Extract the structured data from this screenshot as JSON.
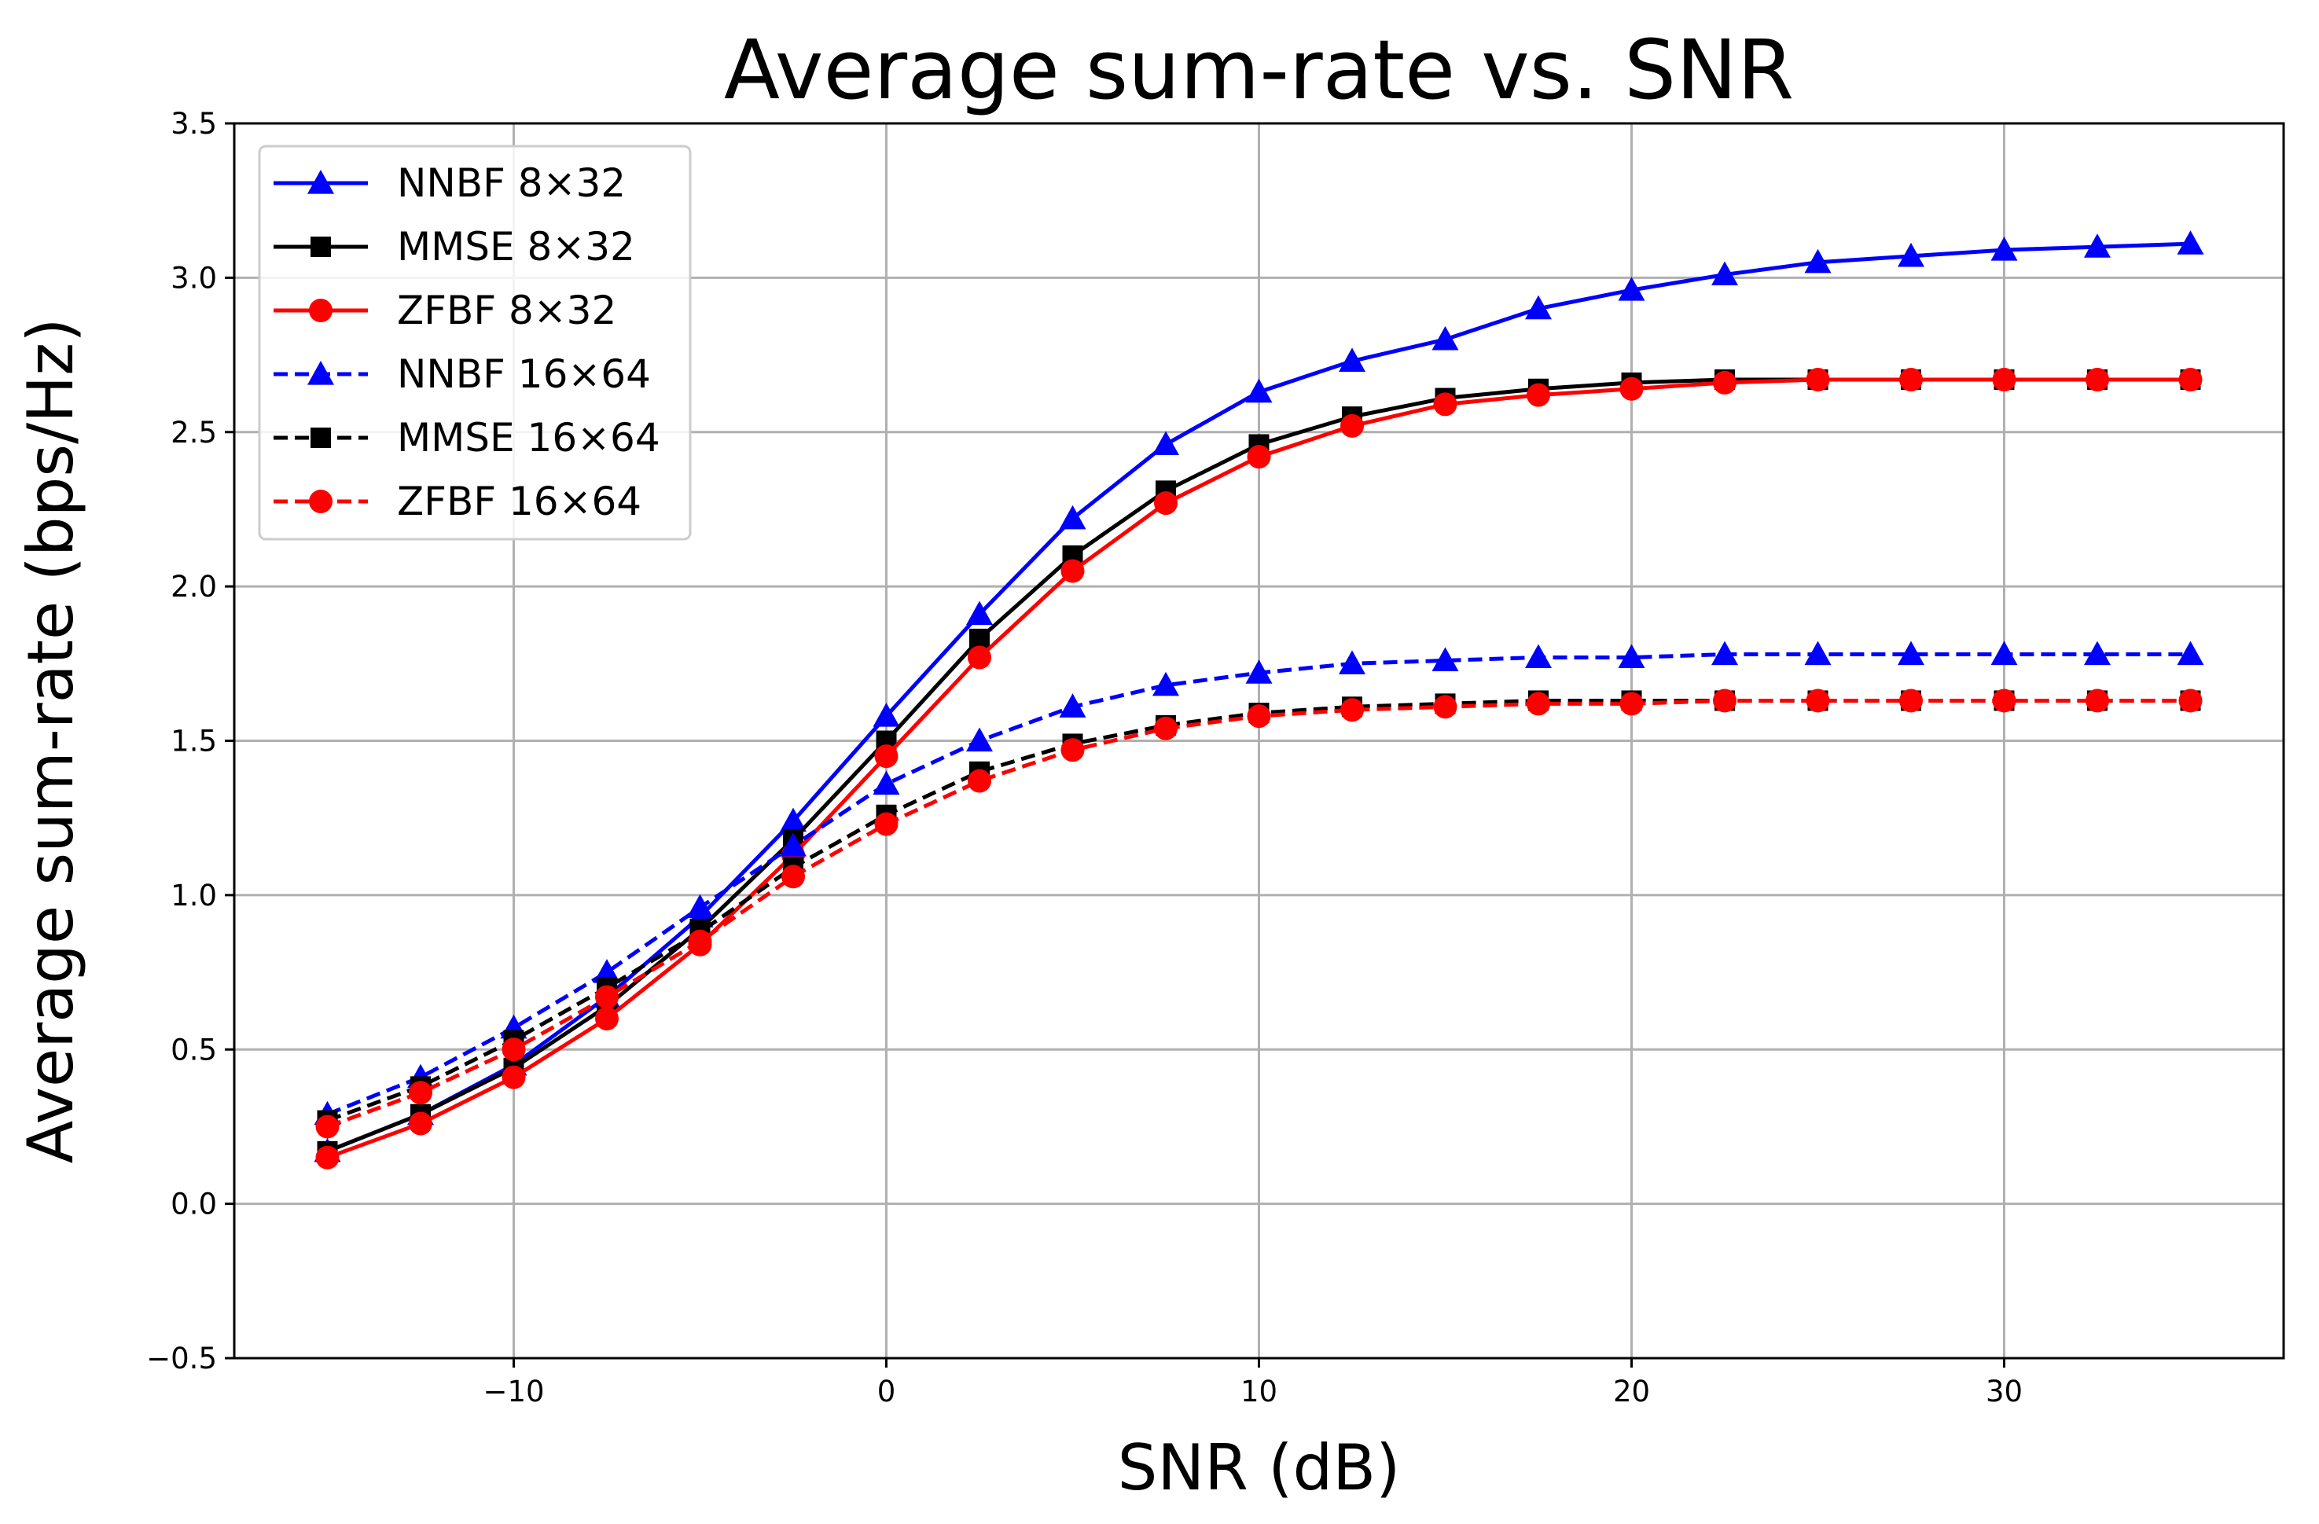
{
  "chart_data": {
    "type": "line",
    "title": "Average sum-rate vs. SNR",
    "xlabel": "SNR (dB)",
    "ylabel": "Average sum-rate (bps/Hz)",
    "xlim": [
      -17.5,
      37.5
    ],
    "ylim": [
      -0.5,
      3.5
    ],
    "x_ticks": [
      -10,
      0,
      10,
      20,
      30
    ],
    "x_tick_labels": [
      "−10",
      "0",
      "10",
      "20",
      "30"
    ],
    "y_ticks": [
      -0.5,
      0.0,
      0.5,
      1.0,
      1.5,
      2.0,
      2.5,
      3.0,
      3.5
    ],
    "y_tick_labels": [
      "−0.5",
      "0.0",
      "0.5",
      "1.0",
      "1.5",
      "2.0",
      "2.5",
      "3.0",
      "3.5"
    ],
    "grid": true,
    "legend_position": "top-left",
    "x": [
      -15,
      -12.5,
      -10,
      -7.5,
      -5,
      -2.5,
      0,
      2.5,
      5,
      7.5,
      10,
      12.5,
      15,
      17.5,
      20,
      22.5,
      25,
      27.5,
      30,
      32.5,
      35
    ],
    "series": [
      {
        "name": "NNBF 8×32",
        "color": "#0000ff",
        "linestyle": "solid",
        "marker": "triangle",
        "values": [
          0.17,
          0.29,
          0.45,
          0.67,
          0.93,
          1.24,
          1.58,
          1.91,
          2.22,
          2.46,
          2.63,
          2.73,
          2.8,
          2.9,
          2.96,
          3.01,
          3.05,
          3.07,
          3.09,
          3.1,
          3.11
        ]
      },
      {
        "name": "MMSE 8×32",
        "color": "#000000",
        "linestyle": "solid",
        "marker": "square",
        "values": [
          0.17,
          0.29,
          0.44,
          0.64,
          0.89,
          1.18,
          1.5,
          1.83,
          2.1,
          2.31,
          2.46,
          2.55,
          2.61,
          2.64,
          2.66,
          2.67,
          2.67,
          2.67,
          2.67,
          2.67,
          2.67
        ]
      },
      {
        "name": "ZFBF 8×32",
        "color": "#ff0000",
        "linestyle": "solid",
        "marker": "circle",
        "values": [
          0.15,
          0.26,
          0.41,
          0.6,
          0.84,
          1.13,
          1.45,
          1.77,
          2.05,
          2.27,
          2.42,
          2.52,
          2.59,
          2.62,
          2.64,
          2.66,
          2.67,
          2.67,
          2.67,
          2.67,
          2.67
        ]
      },
      {
        "name": "NNBF 16×64",
        "color": "#0000ff",
        "linestyle": "dashed",
        "marker": "triangle",
        "values": [
          0.29,
          0.41,
          0.57,
          0.75,
          0.96,
          1.16,
          1.36,
          1.5,
          1.61,
          1.68,
          1.72,
          1.75,
          1.76,
          1.77,
          1.77,
          1.78,
          1.78,
          1.78,
          1.78,
          1.78,
          1.78
        ]
      },
      {
        "name": "MMSE 16×64",
        "color": "#000000",
        "linestyle": "dashed",
        "marker": "square",
        "values": [
          0.27,
          0.38,
          0.53,
          0.7,
          0.88,
          1.09,
          1.26,
          1.4,
          1.49,
          1.55,
          1.59,
          1.61,
          1.62,
          1.63,
          1.63,
          1.63,
          1.63,
          1.63,
          1.63,
          1.63,
          1.63
        ]
      },
      {
        "name": "ZFBF 16×64",
        "color": "#ff0000",
        "linestyle": "dashed",
        "marker": "circle",
        "values": [
          0.25,
          0.36,
          0.5,
          0.67,
          0.85,
          1.06,
          1.23,
          1.37,
          1.47,
          1.54,
          1.58,
          1.6,
          1.61,
          1.62,
          1.62,
          1.63,
          1.63,
          1.63,
          1.63,
          1.63,
          1.63
        ]
      }
    ]
  }
}
